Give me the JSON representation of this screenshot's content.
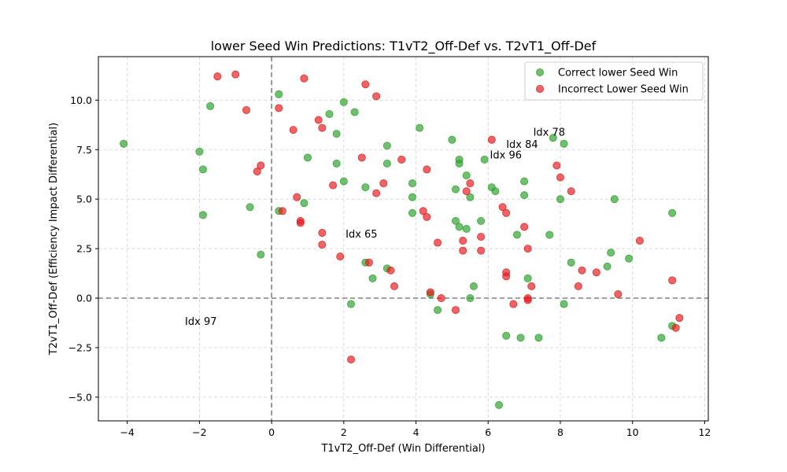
{
  "chart_data": {
    "type": "scatter",
    "title": "lower Seed Win Predictions: T1vT2_Off-Def vs. T2vT1_Off-Def",
    "xlabel": "T1vT2_Off-Def (Win Differential)",
    "ylabel": "T2vT1_Off-Def (Efficiency Impact Differential)",
    "xlim": [
      -4.8,
      12.1
    ],
    "ylim": [
      -6.2,
      12.2
    ],
    "xticks": [
      -4,
      -2,
      0,
      2,
      4,
      6,
      8,
      10,
      12
    ],
    "yticks": [
      -5.0,
      -2.5,
      0.0,
      2.5,
      5.0,
      7.5,
      10.0
    ],
    "xtick_labels": [
      "−4",
      "−2",
      "0",
      "2",
      "4",
      "6",
      "8",
      "10",
      "12"
    ],
    "ytick_labels": [
      "−5.0",
      "−2.5",
      "0.0",
      "2.5",
      "5.0",
      "7.5",
      "10.0"
    ],
    "grid": true,
    "reference_lines": {
      "x": 0,
      "y": 0
    },
    "legend_position": "top-right",
    "series": [
      {
        "name": "Correct lower Seed Win",
        "color": "#2ca02c",
        "points": [
          [
            -4.1,
            7.8
          ],
          [
            -2.0,
            7.4
          ],
          [
            -1.9,
            6.5
          ],
          [
            -1.9,
            4.2
          ],
          [
            -1.7,
            9.7
          ],
          [
            -0.6,
            4.6
          ],
          [
            -0.3,
            2.2
          ],
          [
            0.2,
            10.3
          ],
          [
            0.2,
            4.4
          ],
          [
            0.9,
            4.8
          ],
          [
            1.0,
            7.1
          ],
          [
            1.6,
            9.3
          ],
          [
            1.8,
            8.3
          ],
          [
            1.8,
            6.8
          ],
          [
            2.0,
            9.9
          ],
          [
            2.0,
            5.9
          ],
          [
            2.2,
            -0.3
          ],
          [
            2.3,
            9.4
          ],
          [
            2.6,
            5.6
          ],
          [
            2.6,
            1.8
          ],
          [
            2.8,
            1.0
          ],
          [
            3.2,
            7.7
          ],
          [
            3.2,
            6.8
          ],
          [
            3.2,
            1.5
          ],
          [
            3.9,
            5.8
          ],
          [
            3.9,
            5.1
          ],
          [
            3.9,
            4.3
          ],
          [
            4.1,
            8.6
          ],
          [
            4.4,
            0.2
          ],
          [
            4.6,
            -0.6
          ],
          [
            5.0,
            8.0
          ],
          [
            5.1,
            5.5
          ],
          [
            5.1,
            3.9
          ],
          [
            5.2,
            7.0
          ],
          [
            5.2,
            6.8
          ],
          [
            5.2,
            3.6
          ],
          [
            5.4,
            6.2
          ],
          [
            5.4,
            3.5
          ],
          [
            5.5,
            5.1
          ],
          [
            5.5,
            0.0
          ],
          [
            5.6,
            0.6
          ],
          [
            5.8,
            3.9
          ],
          [
            5.9,
            7.0
          ],
          [
            6.1,
            5.6
          ],
          [
            6.2,
            5.4
          ],
          [
            6.3,
            -5.4
          ],
          [
            6.5,
            -1.9
          ],
          [
            6.8,
            3.2
          ],
          [
            6.9,
            -2.0
          ],
          [
            7.0,
            5.9
          ],
          [
            7.0,
            5.2
          ],
          [
            7.1,
            1.0
          ],
          [
            7.4,
            -2.0
          ],
          [
            7.7,
            3.2
          ],
          [
            7.8,
            8.1
          ],
          [
            8.0,
            5.0
          ],
          [
            8.1,
            7.8
          ],
          [
            8.1,
            -0.3
          ],
          [
            8.3,
            1.8
          ],
          [
            9.3,
            1.6
          ],
          [
            9.4,
            2.3
          ],
          [
            9.5,
            5.0
          ],
          [
            9.9,
            2.0
          ],
          [
            10.8,
            -2.0
          ],
          [
            11.1,
            4.3
          ],
          [
            11.1,
            -1.4
          ]
        ]
      },
      {
        "name": "Incorrect Lower Seed Win",
        "color": "#e31a1c",
        "points": [
          [
            -1.5,
            11.2
          ],
          [
            -1.0,
            11.3
          ],
          [
            -0.7,
            9.5
          ],
          [
            -0.4,
            6.4
          ],
          [
            -0.3,
            6.7
          ],
          [
            0.2,
            9.6
          ],
          [
            0.3,
            4.4
          ],
          [
            0.6,
            8.5
          ],
          [
            0.7,
            5.1
          ],
          [
            0.8,
            3.9
          ],
          [
            0.8,
            3.8
          ],
          [
            0.9,
            11.1
          ],
          [
            1.3,
            9.0
          ],
          [
            1.4,
            8.6
          ],
          [
            1.4,
            3.3
          ],
          [
            1.4,
            2.7
          ],
          [
            1.7,
            5.7
          ],
          [
            1.9,
            2.1
          ],
          [
            2.2,
            -3.1
          ],
          [
            2.5,
            7.1
          ],
          [
            2.6,
            10.8
          ],
          [
            2.7,
            1.8
          ],
          [
            2.9,
            10.2
          ],
          [
            2.9,
            5.3
          ],
          [
            3.1,
            5.8
          ],
          [
            3.3,
            1.4
          ],
          [
            3.4,
            0.6
          ],
          [
            3.6,
            7.0
          ],
          [
            4.2,
            4.4
          ],
          [
            4.3,
            6.5
          ],
          [
            4.3,
            4.1
          ],
          [
            4.4,
            0.3
          ],
          [
            4.6,
            2.8
          ],
          [
            4.7,
            0.0
          ],
          [
            5.1,
            -0.6
          ],
          [
            5.3,
            2.9
          ],
          [
            5.3,
            2.4
          ],
          [
            5.4,
            5.4
          ],
          [
            5.5,
            5.8
          ],
          [
            5.8,
            3.1
          ],
          [
            5.8,
            2.4
          ],
          [
            6.1,
            8.0
          ],
          [
            6.4,
            4.6
          ],
          [
            6.5,
            4.3
          ],
          [
            6.5,
            1.3
          ],
          [
            6.5,
            1.1
          ],
          [
            6.7,
            -0.3
          ],
          [
            7.0,
            3.6
          ],
          [
            7.1,
            2.5
          ],
          [
            7.1,
            0.0
          ],
          [
            7.1,
            -0.1
          ],
          [
            7.2,
            0.6
          ],
          [
            7.9,
            6.7
          ],
          [
            8.0,
            6.1
          ],
          [
            8.3,
            5.4
          ],
          [
            8.5,
            0.6
          ],
          [
            8.6,
            1.4
          ],
          [
            9.0,
            1.3
          ],
          [
            9.6,
            0.2
          ],
          [
            10.2,
            2.9
          ],
          [
            11.1,
            0.9
          ],
          [
            11.2,
            -1.5
          ],
          [
            11.3,
            -1.0
          ]
        ]
      }
    ],
    "annotations": [
      {
        "text": "Idx 78",
        "x": 7.25,
        "y": 8.2
      },
      {
        "text": "Idx 84",
        "x": 6.5,
        "y": 7.6
      },
      {
        "text": "Idx 96",
        "x": 6.05,
        "y": 7.05
      },
      {
        "text": "Idx 65",
        "x": 2.05,
        "y": 3.05
      },
      {
        "text": "Idx 97",
        "x": -2.4,
        "y": -1.35
      }
    ]
  }
}
